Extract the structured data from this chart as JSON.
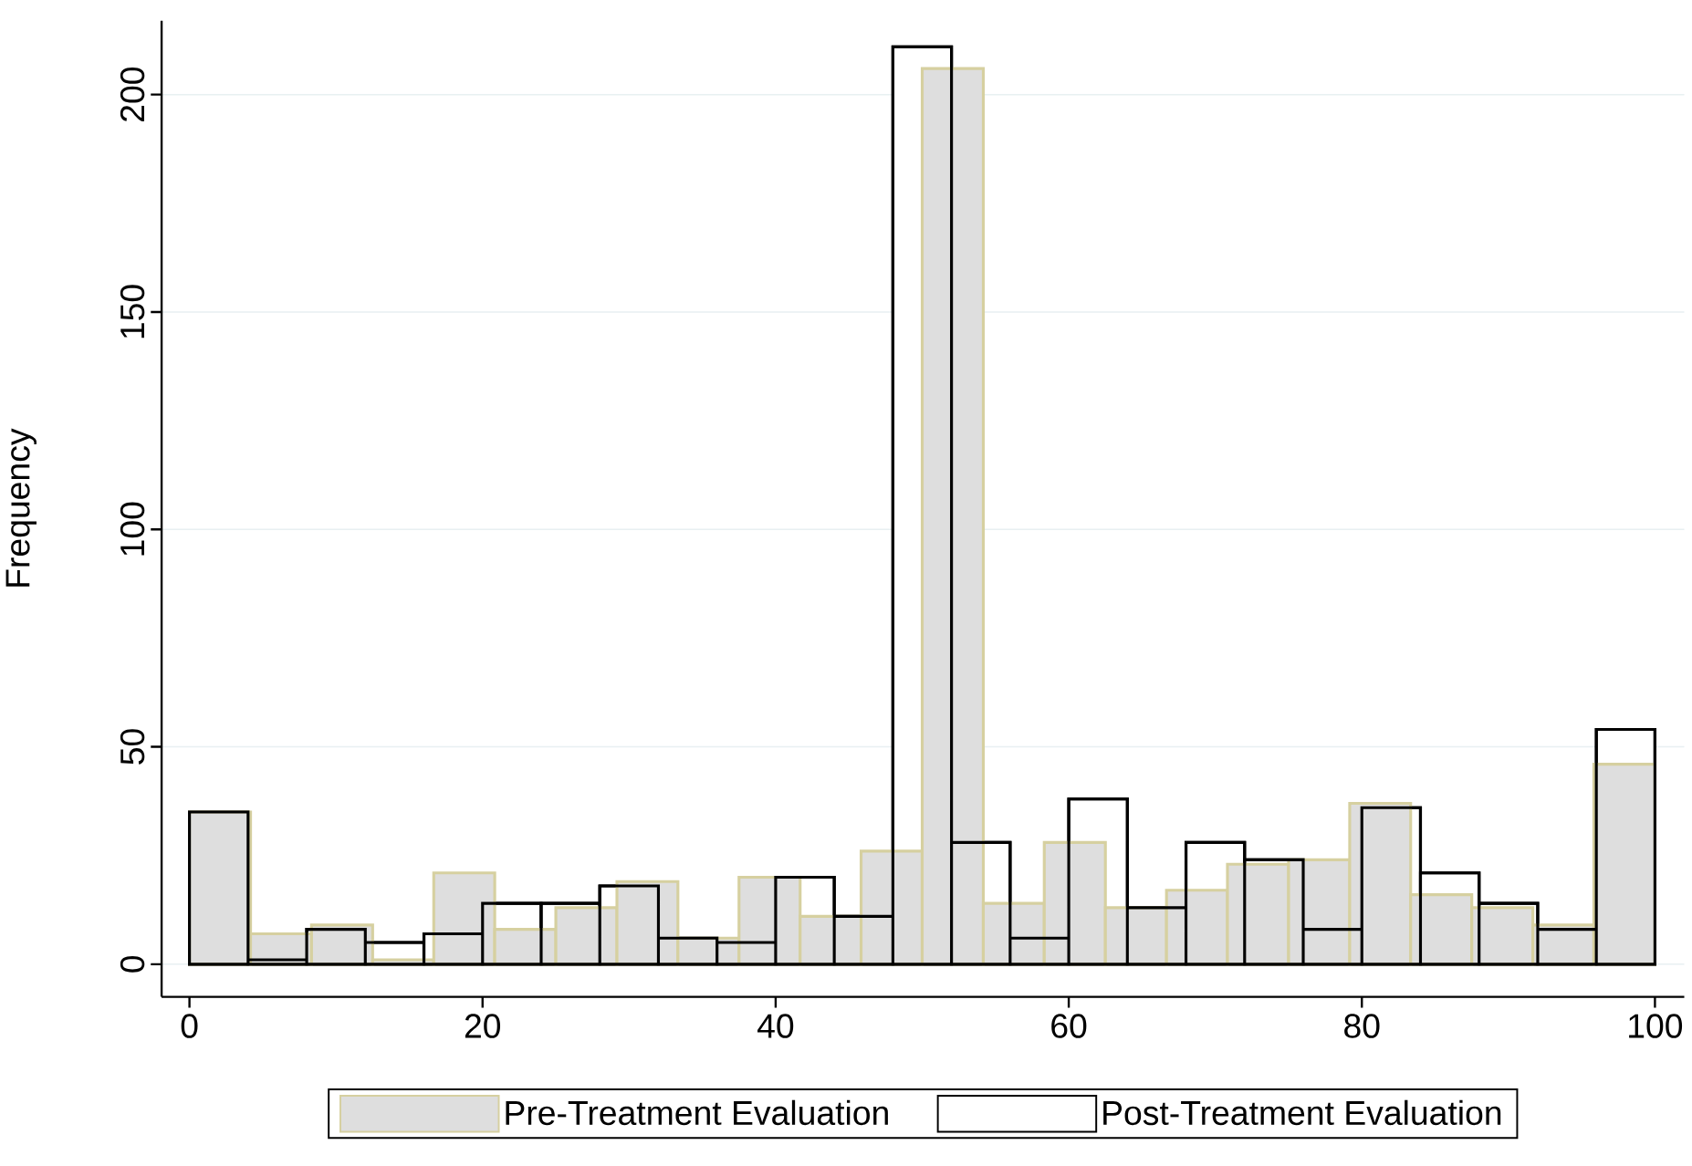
{
  "chart_data": {
    "type": "histogram",
    "ylabel": "Frequency",
    "bins": [
      0,
      4,
      8,
      12,
      16,
      20,
      24,
      28,
      32,
      36,
      40,
      44,
      48,
      52,
      56,
      60,
      64,
      68,
      72,
      76,
      80,
      84,
      88,
      92,
      96,
      100
    ],
    "series": [
      {
        "name": "Pre-Treatment Evaluation",
        "color": "#dedede",
        "bins": [
          0,
          4.17,
          8.33,
          12.5,
          16.67,
          20.83,
          25,
          29.17,
          33.33,
          37.5,
          41.67,
          45.83,
          50,
          54.17,
          58.33,
          62.5,
          66.67,
          70.83,
          75,
          79.17,
          83.33,
          87.5,
          91.67,
          95.83,
          100
        ],
        "values": [
          35,
          7,
          9,
          1,
          21,
          8,
          13,
          19,
          6,
          20,
          11,
          26,
          206,
          14,
          28,
          13,
          17,
          23,
          24,
          37,
          16,
          13,
          9,
          46
        ]
      },
      {
        "name": "Post-Treatment Evaluation",
        "color": "#ffffff",
        "values": [
          35,
          1,
          8,
          5,
          7,
          14,
          14,
          18,
          6,
          5,
          20,
          11,
          211,
          28,
          6,
          38,
          13,
          28,
          24,
          8,
          36,
          21,
          14,
          8,
          54
        ]
      }
    ],
    "xlim": [
      -1.9,
      102
    ],
    "ylim": [
      -7.5,
      217
    ],
    "xticks": [
      0,
      20,
      40,
      60,
      80,
      100
    ],
    "yticks": [
      0,
      50,
      100,
      150,
      200
    ],
    "grid": "y",
    "legend": "bottom"
  }
}
